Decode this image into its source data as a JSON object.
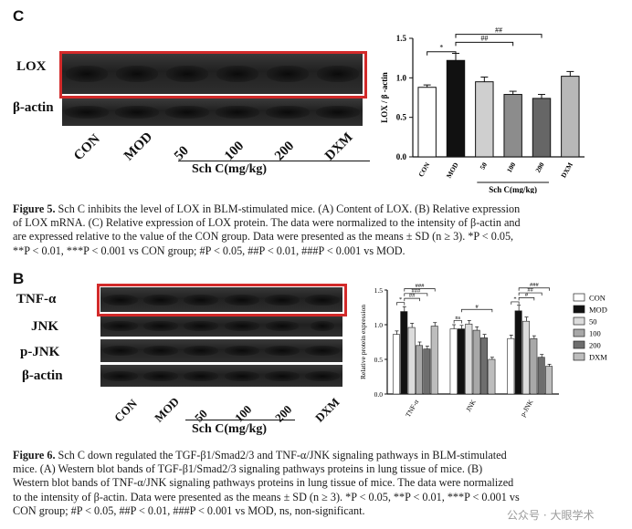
{
  "fig5": {
    "panel": "C",
    "blot_labels": [
      "LOX",
      "β-actin"
    ],
    "lanes": [
      "CON",
      "MOD",
      "50",
      "100",
      "200",
      "DXM"
    ],
    "group_label": "Sch C(mg/kg)",
    "caption_title": "Figure 5.",
    "caption_lines": [
      "Sch C inhibits the level of LOX in BLM-stimulated mice. (A) Content of LOX. (B) Relative expression",
      "of LOX mRNA. (C) Relative expression of LOX protein. The data were normalized to the intensity of β-actin and",
      "are expressed relative to the value of the CON group. Data were presented as the means ± SD (n ≥ 3). *P < 0.05,",
      "**P < 0.01, ***P < 0.001 vs CON group; #P < 0.05, ##P < 0.01, ###P < 0.001 vs MOD."
    ]
  },
  "fig6": {
    "panel": "B",
    "blot_labels": [
      "TNF-α",
      "JNK",
      "p-JNK",
      "β-actin"
    ],
    "lanes": [
      "CON",
      "MOD",
      "50",
      "100",
      "200",
      "DXM"
    ],
    "group_label": "Sch C(mg/kg)",
    "caption_title": "Figure 6.",
    "caption_lines": [
      "Sch C down regulated the TGF-β1/Smad2/3 and TNF-α/JNK signaling pathways in BLM-stimulated",
      "mice. (A) Western blot bands of TGF-β1/Smad2/3 signaling pathways proteins in lung tissue of mice. (B)",
      "Western blot bands of TNF-α/JNK signaling pathways proteins in lung tissue of mice. The data were normalized",
      "to the intensity of β-actin. Data were presented as the means ± SD (n ≥ 3). *P < 0.05, **P < 0.01, ***P < 0.001 vs",
      "CON group; #P < 0.05, ##P < 0.01, ###P < 0.001 vs MOD, ns, non-significant."
    ]
  },
  "watermark": "公众号 · 大眼学术",
  "chart_data": [
    {
      "type": "bar",
      "categories": [
        "CON",
        "MOD",
        "50",
        "100",
        "200",
        "DXM"
      ],
      "values": [
        0.88,
        1.22,
        0.95,
        0.79,
        0.74,
        1.02
      ],
      "errors": [
        0.03,
        0.09,
        0.06,
        0.04,
        0.05,
        0.06
      ],
      "colors": [
        "#ffffff",
        "#111111",
        "#cfcfcf",
        "#8c8c8c",
        "#666666",
        "#b8b8b8"
      ],
      "ylabel": "LOX / β -actin",
      "group_label": "Sch C(mg/kg)",
      "ylim": [
        0,
        1.5
      ],
      "yticks": [
        "0.0",
        "0.5",
        "1.0",
        "1.5"
      ],
      "annotations": [
        "*",
        "##",
        "##"
      ]
    },
    {
      "type": "bar",
      "categories": [
        "TNF-α",
        "JNK",
        "p-JNK"
      ],
      "series": [
        {
          "name": "CON",
          "values": [
            0.86,
            0.94,
            0.8
          ],
          "errors": [
            0.05,
            0.06,
            0.05
          ],
          "color": "#ffffff"
        },
        {
          "name": "MOD",
          "values": [
            1.19,
            0.94,
            1.2
          ],
          "errors": [
            0.07,
            0.05,
            0.08
          ],
          "color": "#111111"
        },
        {
          "name": "50",
          "values": [
            0.96,
            1.01,
            1.05
          ],
          "errors": [
            0.06,
            0.05,
            0.06
          ],
          "color": "#dcdcdc"
        },
        {
          "name": "100",
          "values": [
            0.7,
            0.92,
            0.8
          ],
          "errors": [
            0.05,
            0.05,
            0.04
          ],
          "color": "#a8a8a8"
        },
        {
          "name": "200",
          "values": [
            0.65,
            0.81,
            0.53
          ],
          "errors": [
            0.04,
            0.05,
            0.04
          ],
          "color": "#6e6e6e"
        },
        {
          "name": "DXM",
          "values": [
            0.98,
            0.5,
            0.4
          ],
          "errors": [
            0.05,
            0.03,
            0.03
          ],
          "color": "#bdbdbd"
        }
      ],
      "ylabel": "Relative protein expression",
      "ylim": [
        0,
        1.5
      ],
      "yticks": [
        "0.0",
        "0.5",
        "1.0",
        "1.5"
      ],
      "annotations": [
        "*",
        "##",
        "###",
        "###",
        "ns",
        "#",
        "*",
        "#",
        "##",
        "###"
      ],
      "legend_position": "right"
    }
  ]
}
